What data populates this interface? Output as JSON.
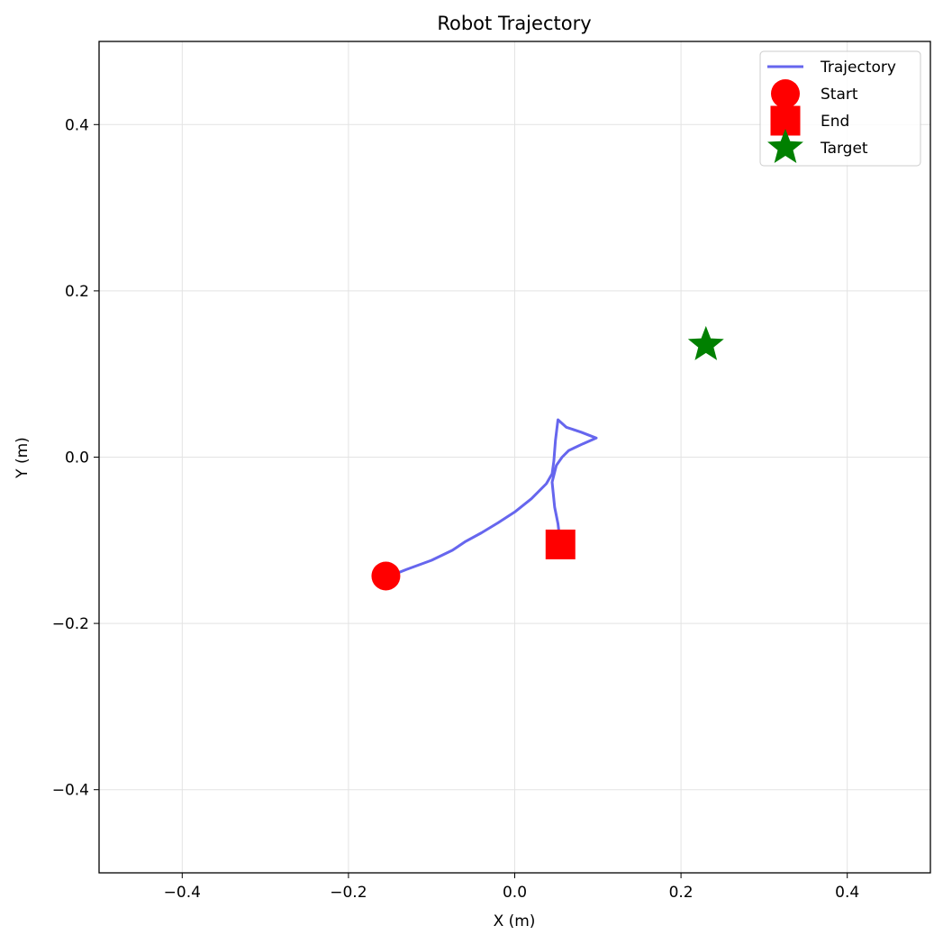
{
  "chart_data": {
    "type": "line",
    "title": "Robot Trajectory",
    "xlabel": "X (m)",
    "ylabel": "Y (m)",
    "xlim": [
      -0.5,
      0.5
    ],
    "ylim": [
      -0.5,
      0.5
    ],
    "xticks": [
      -0.4,
      -0.2,
      0.0,
      0.2,
      0.4
    ],
    "yticks": [
      -0.4,
      -0.2,
      0.0,
      0.2,
      0.4
    ],
    "xtick_labels": [
      "−0.4",
      "−0.2",
      "0.0",
      "0.2",
      "0.4"
    ],
    "ytick_labels": [
      "−0.4",
      "−0.2",
      "0.0",
      "0.2",
      "0.4"
    ],
    "grid": true,
    "legend_position": "top-right",
    "series": [
      {
        "name": "Trajectory",
        "kind": "line",
        "color": "#6666ee",
        "points": [
          [
            -0.155,
            -0.145
          ],
          [
            -0.13,
            -0.135
          ],
          [
            -0.1,
            -0.124
          ],
          [
            -0.075,
            -0.112
          ],
          [
            -0.06,
            -0.102
          ],
          [
            -0.04,
            -0.091
          ],
          [
            -0.02,
            -0.079
          ],
          [
            0.0,
            -0.066
          ],
          [
            0.02,
            -0.05
          ],
          [
            0.038,
            -0.032
          ],
          [
            0.045,
            -0.02
          ],
          [
            0.047,
            -0.005
          ],
          [
            0.049,
            0.02
          ],
          [
            0.052,
            0.045
          ],
          [
            0.062,
            0.036
          ],
          [
            0.08,
            0.03
          ],
          [
            0.098,
            0.023
          ],
          [
            0.082,
            0.016
          ],
          [
            0.065,
            0.008
          ],
          [
            0.057,
            0.0
          ],
          [
            0.05,
            -0.01
          ],
          [
            0.045,
            -0.03
          ],
          [
            0.048,
            -0.06
          ],
          [
            0.052,
            -0.08
          ],
          [
            0.055,
            -0.105
          ]
        ]
      },
      {
        "name": "Start",
        "kind": "marker",
        "marker": "circle",
        "color": "#ff0000",
        "x": -0.155,
        "y": -0.143
      },
      {
        "name": "End",
        "kind": "marker",
        "marker": "square",
        "color": "#ff0000",
        "x": 0.055,
        "y": -0.105
      },
      {
        "name": "Target",
        "kind": "marker",
        "marker": "star",
        "color": "#008000",
        "x": 0.23,
        "y": 0.135
      }
    ]
  }
}
